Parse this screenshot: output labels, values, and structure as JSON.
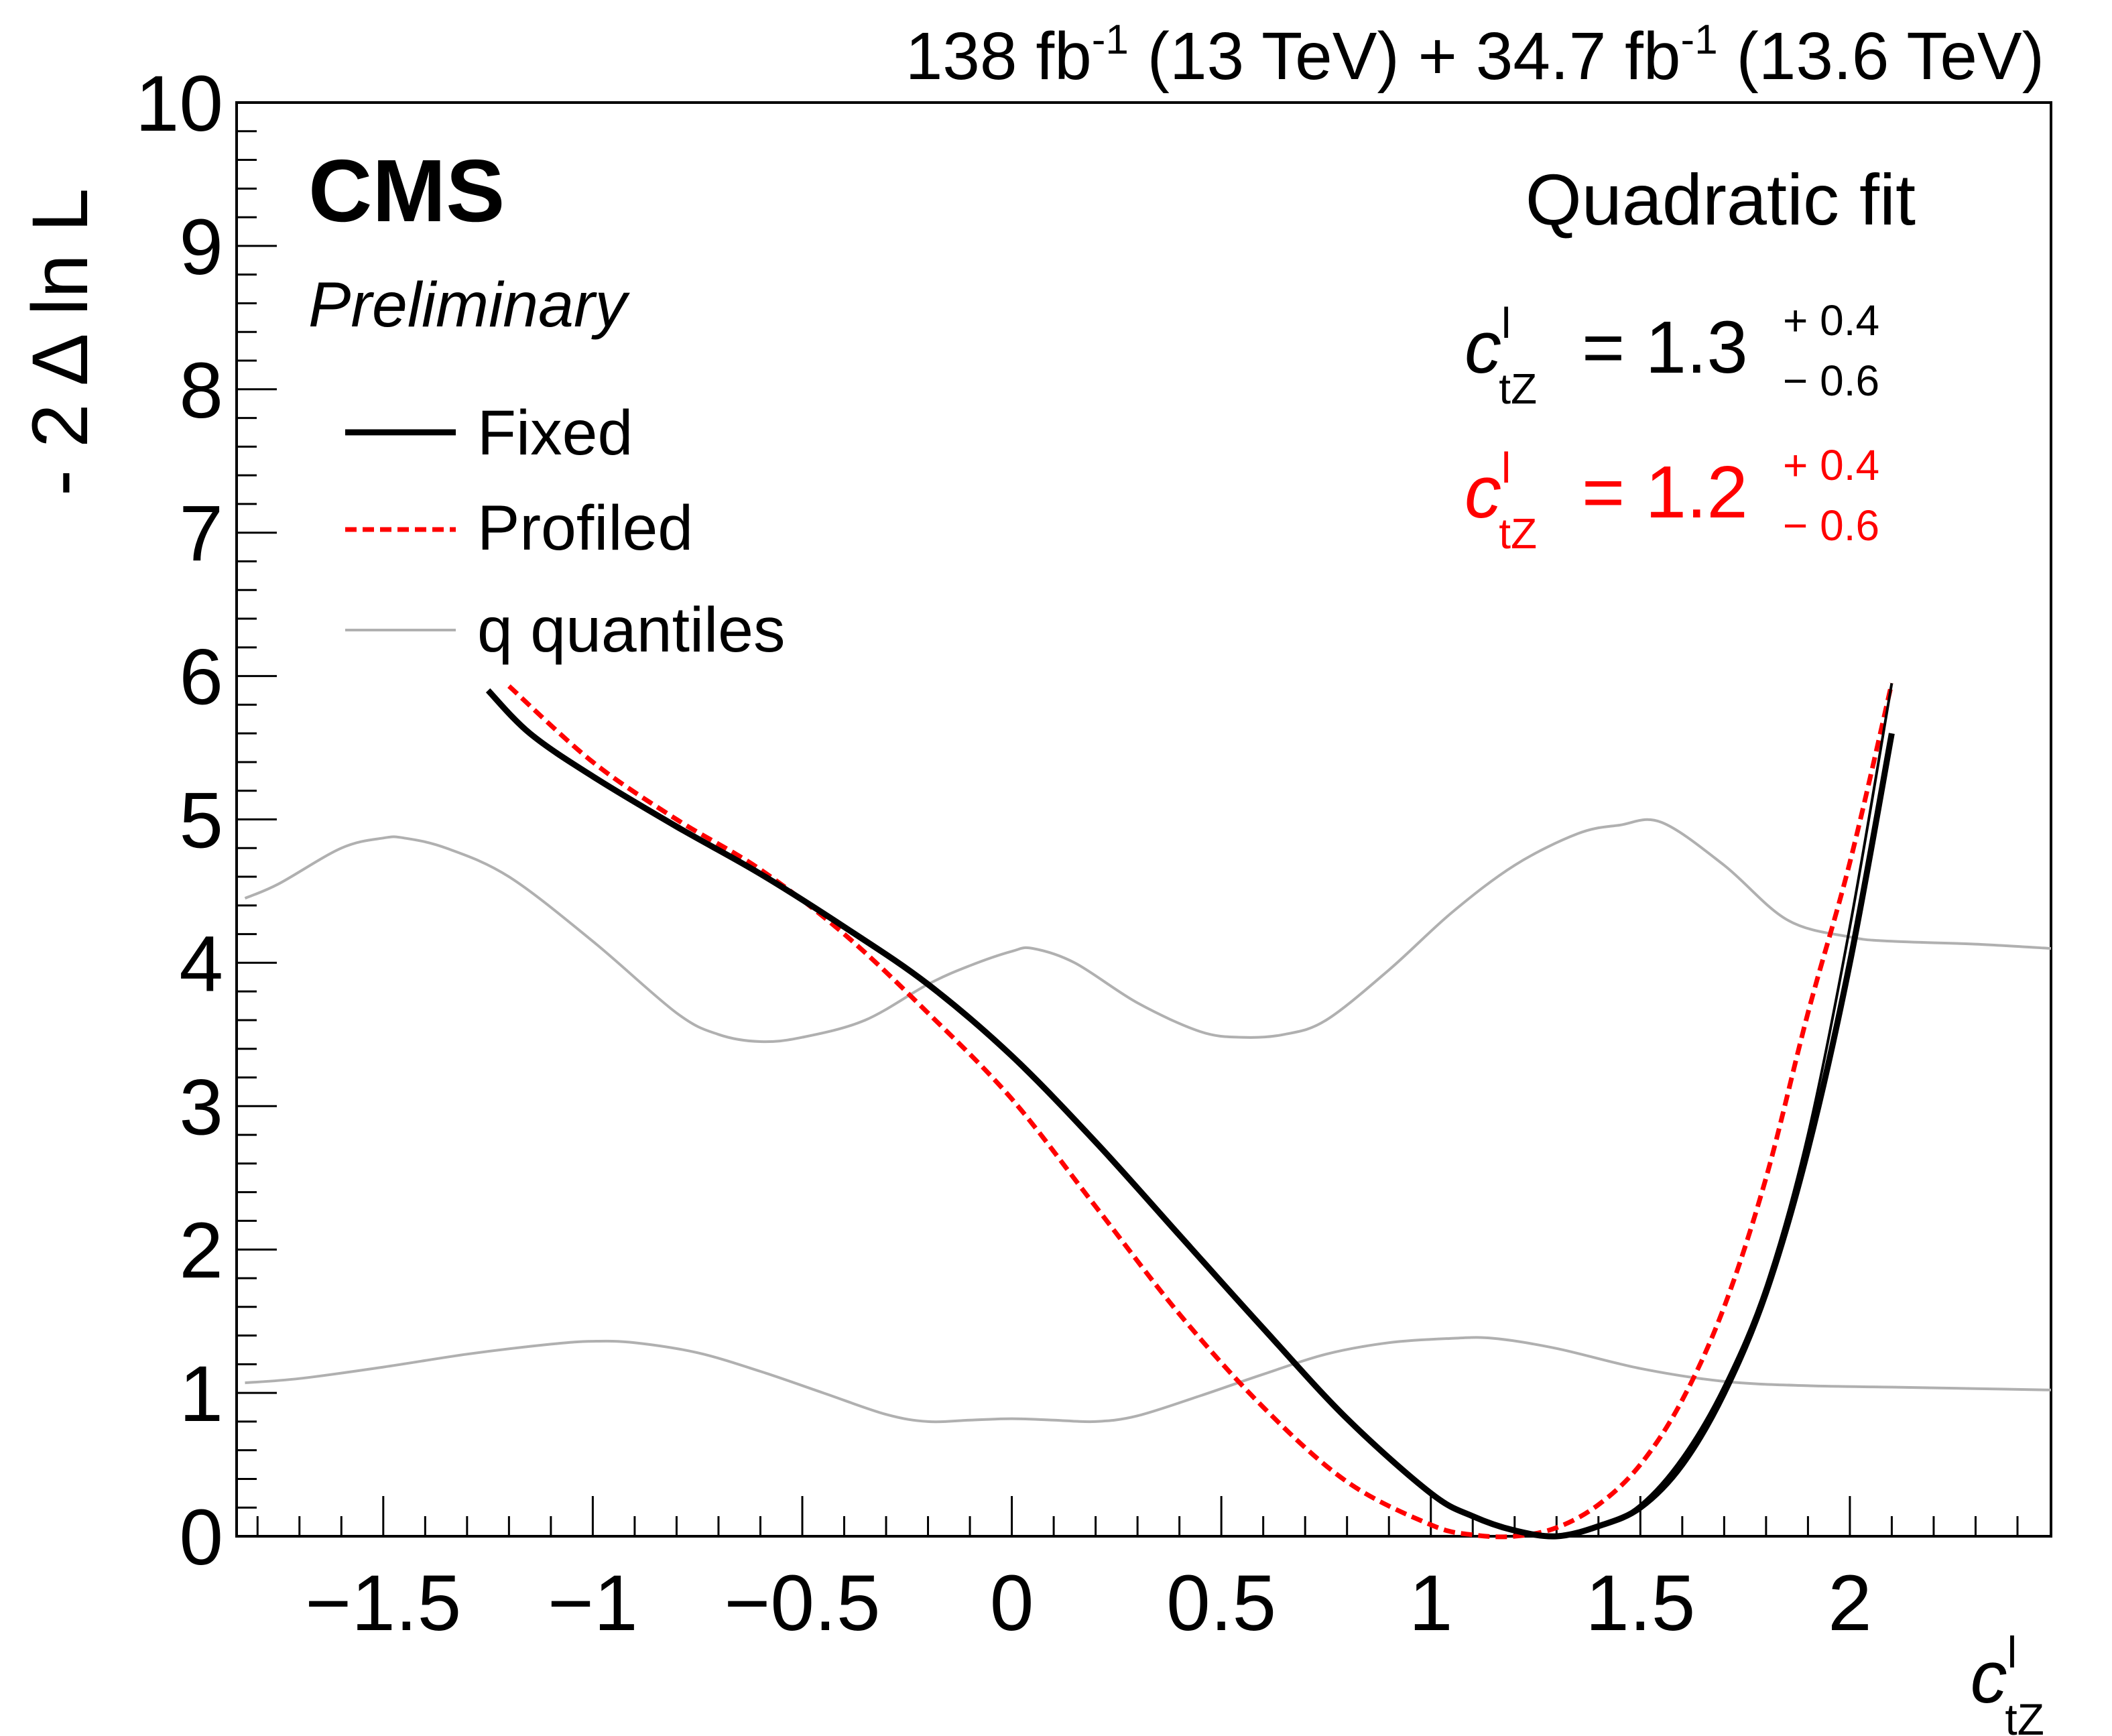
{
  "header": {
    "lumi_a": "138 fb",
    "lumi_a_exp": "-1",
    "energy_a": " (13 TeV) + 34.7 fb",
    "lumi_b_exp": "-1",
    "energy_b": " (13.6 TeV)"
  },
  "branding": {
    "experiment": "CMS",
    "status": "Preliminary"
  },
  "fit_box": {
    "title": "Quadratic fit",
    "var_base": "c",
    "var_sup": "l",
    "var_sub": "tZ",
    "fixed": {
      "eq": "= 1.3",
      "up": "+ 0.4",
      "down": "− 0.6",
      "color": "#000000"
    },
    "profiled": {
      "eq": "= 1.2",
      "up": "+ 0.4",
      "down": "− 0.6",
      "color": "#ff0000"
    }
  },
  "axes": {
    "y_label": "- 2 Δ ln L",
    "x_label_base": "c",
    "x_label_sup": "l",
    "x_label_sub": "tZ"
  },
  "chart_data": {
    "type": "line",
    "xlim": [
      -1.85,
      2.48
    ],
    "ylim": [
      0,
      10
    ],
    "xticks": [
      {
        "v": -1.5,
        "label": "−1.5"
      },
      {
        "v": -1,
        "label": "−1"
      },
      {
        "v": -0.5,
        "label": "−0.5"
      },
      {
        "v": 0,
        "label": "0"
      },
      {
        "v": 0.5,
        "label": "0.5"
      },
      {
        "v": 1,
        "label": "1"
      },
      {
        "v": 1.5,
        "label": "1.5"
      },
      {
        "v": 2,
        "label": "2"
      }
    ],
    "yticks": [
      {
        "v": 0,
        "label": "0"
      },
      {
        "v": 1,
        "label": "1"
      },
      {
        "v": 2,
        "label": "2"
      },
      {
        "v": 3,
        "label": "3"
      },
      {
        "v": 4,
        "label": "4"
      },
      {
        "v": 5,
        "label": "5"
      },
      {
        "v": 6,
        "label": "6"
      },
      {
        "v": 7,
        "label": "7"
      },
      {
        "v": 8,
        "label": "8"
      },
      {
        "v": 9,
        "label": "9"
      },
      {
        "v": 10,
        "label": "10"
      }
    ],
    "grid": false,
    "legend_position": "top-left",
    "series": [
      {
        "name": "Fixed",
        "style": "solid-thick",
        "color": "#000000",
        "x": [
          -1.25,
          -1.15,
          -1.0,
          -0.8,
          -0.6,
          -0.4,
          -0.2,
          0.0,
          0.2,
          0.4,
          0.6,
          0.8,
          1.0,
          1.1,
          1.2,
          1.3,
          1.4,
          1.5,
          1.6,
          1.7,
          1.8,
          1.9,
          2.0,
          2.1
        ],
        "y": [
          5.9,
          5.6,
          5.3,
          4.95,
          4.62,
          4.25,
          3.85,
          3.35,
          2.75,
          2.1,
          1.45,
          0.82,
          0.3,
          0.14,
          0.04,
          0.0,
          0.07,
          0.2,
          0.5,
          1.0,
          1.7,
          2.7,
          4.0,
          5.6
        ]
      },
      {
        "name": "",
        "style": "solid-thin",
        "color": "#000000",
        "x": [
          1.3,
          1.4,
          1.5,
          1.6,
          1.7,
          1.8,
          1.9,
          2.0,
          2.1
        ],
        "y": [
          0.0,
          0.06,
          0.22,
          0.55,
          1.05,
          1.75,
          2.8,
          4.25,
          5.95
        ]
      },
      {
        "name": "Profiled",
        "style": "dashed",
        "color": "#ff0000",
        "x": [
          -1.2,
          -1.0,
          -0.8,
          -0.6,
          -0.4,
          -0.2,
          0.0,
          0.2,
          0.4,
          0.6,
          0.8,
          1.0,
          1.1,
          1.2,
          1.3,
          1.4,
          1.5,
          1.6,
          1.7,
          1.8,
          1.9,
          2.0,
          2.1
        ],
        "y": [
          5.93,
          5.4,
          5.0,
          4.65,
          4.2,
          3.65,
          3.05,
          2.3,
          1.55,
          0.9,
          0.38,
          0.08,
          0.01,
          0.0,
          0.06,
          0.22,
          0.5,
          0.95,
          1.6,
          2.5,
          3.65,
          4.7,
          5.95
        ]
      },
      {
        "name": "q quantiles",
        "style": "solid-gray",
        "color": "#b0b0b0",
        "x": [
          -1.83,
          -1.75,
          -1.6,
          -1.5,
          -1.45,
          -1.35,
          -1.2,
          -1.0,
          -0.8,
          -0.7,
          -0.6,
          -0.5,
          -0.35,
          -0.2,
          -0.1,
          0.0,
          0.05,
          0.15,
          0.3,
          0.45,
          0.55,
          0.65,
          0.75,
          0.9,
          1.05,
          1.2,
          1.35,
          1.45,
          1.55,
          1.7,
          1.85,
          2.0,
          2.1,
          2.3,
          2.48
        ],
        "y": [
          4.45,
          4.55,
          4.8,
          4.87,
          4.87,
          4.8,
          4.6,
          4.15,
          3.65,
          3.5,
          3.45,
          3.48,
          3.6,
          3.85,
          3.98,
          4.08,
          4.1,
          4.0,
          3.72,
          3.52,
          3.48,
          3.5,
          3.6,
          3.95,
          4.35,
          4.68,
          4.9,
          4.96,
          4.98,
          4.68,
          4.3,
          4.18,
          4.15,
          4.13,
          4.1
        ]
      },
      {
        "name": "",
        "style": "solid-gray",
        "color": "#b0b0b0",
        "x": [
          -1.83,
          -1.7,
          -1.5,
          -1.3,
          -1.1,
          -1.0,
          -0.9,
          -0.75,
          -0.6,
          -0.45,
          -0.3,
          -0.2,
          -0.1,
          0.0,
          0.1,
          0.2,
          0.3,
          0.45,
          0.6,
          0.75,
          0.9,
          1.05,
          1.15,
          1.3,
          1.5,
          1.7,
          1.9,
          2.1,
          2.3,
          2.48
        ],
        "y": [
          1.07,
          1.1,
          1.18,
          1.27,
          1.34,
          1.36,
          1.35,
          1.28,
          1.15,
          1.0,
          0.85,
          0.8,
          0.81,
          0.82,
          0.81,
          0.8,
          0.84,
          0.98,
          1.13,
          1.27,
          1.35,
          1.38,
          1.38,
          1.31,
          1.17,
          1.08,
          1.05,
          1.04,
          1.03,
          1.02
        ]
      }
    ]
  }
}
